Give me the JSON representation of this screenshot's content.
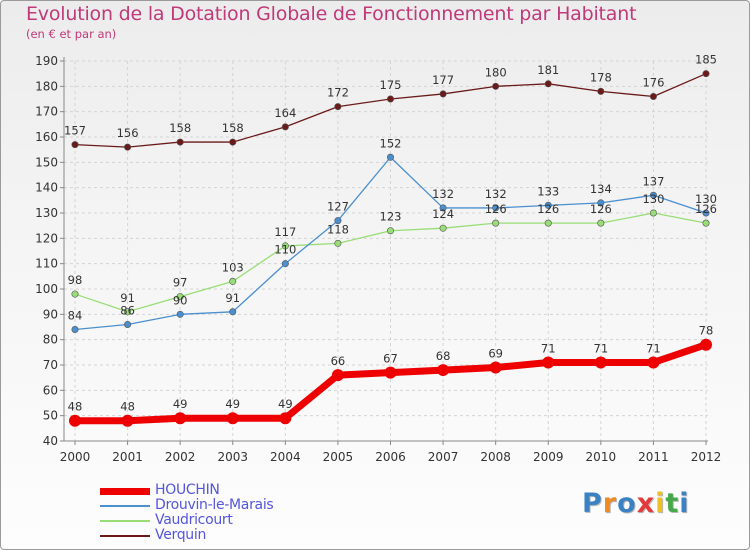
{
  "chart_data": {
    "type": "line",
    "title": "Evolution de la Dotation Globale de Fonctionnement par Habitant",
    "subtitle": "(en € et par an)",
    "x": [
      "2000",
      "2001",
      "2002",
      "2003",
      "2004",
      "2005",
      "2006",
      "2007",
      "2008",
      "2009",
      "2010",
      "2011",
      "2012"
    ],
    "ylim": [
      40,
      190
    ],
    "yticks": [
      40,
      50,
      60,
      70,
      80,
      90,
      100,
      110,
      120,
      130,
      140,
      150,
      160,
      170,
      180,
      190
    ],
    "grid": true,
    "legend_position": "bottom-left",
    "series": [
      {
        "name": "HOUCHIN",
        "color": "#ee0000",
        "values": [
          48,
          48,
          49,
          49,
          49,
          66,
          67,
          68,
          69,
          71,
          71,
          71,
          78
        ]
      },
      {
        "name": "Drouvin-le-Marais",
        "color": "#4b8fcf",
        "values": [
          84,
          86,
          90,
          91,
          110,
          127,
          152,
          132,
          132,
          133,
          134,
          137,
          130
        ]
      },
      {
        "name": "Vaudricourt",
        "color": "#99dd77",
        "values": [
          98,
          91,
          97,
          103,
          117,
          118,
          123,
          124,
          126,
          126,
          126,
          130,
          126
        ]
      },
      {
        "name": "Verquin",
        "color": "#6b1a1a",
        "values": [
          157,
          156,
          158,
          158,
          164,
          172,
          175,
          177,
          180,
          181,
          178,
          176,
          185
        ]
      }
    ]
  },
  "logo": {
    "letters": [
      "P",
      "r",
      "o",
      "x",
      "i",
      "t",
      "i"
    ],
    "colors": [
      "#3b82c4",
      "#f08a24",
      "#3b82c4",
      "#e23b3b",
      "#f0c020",
      "#46a84a",
      "#3b82c4"
    ]
  }
}
